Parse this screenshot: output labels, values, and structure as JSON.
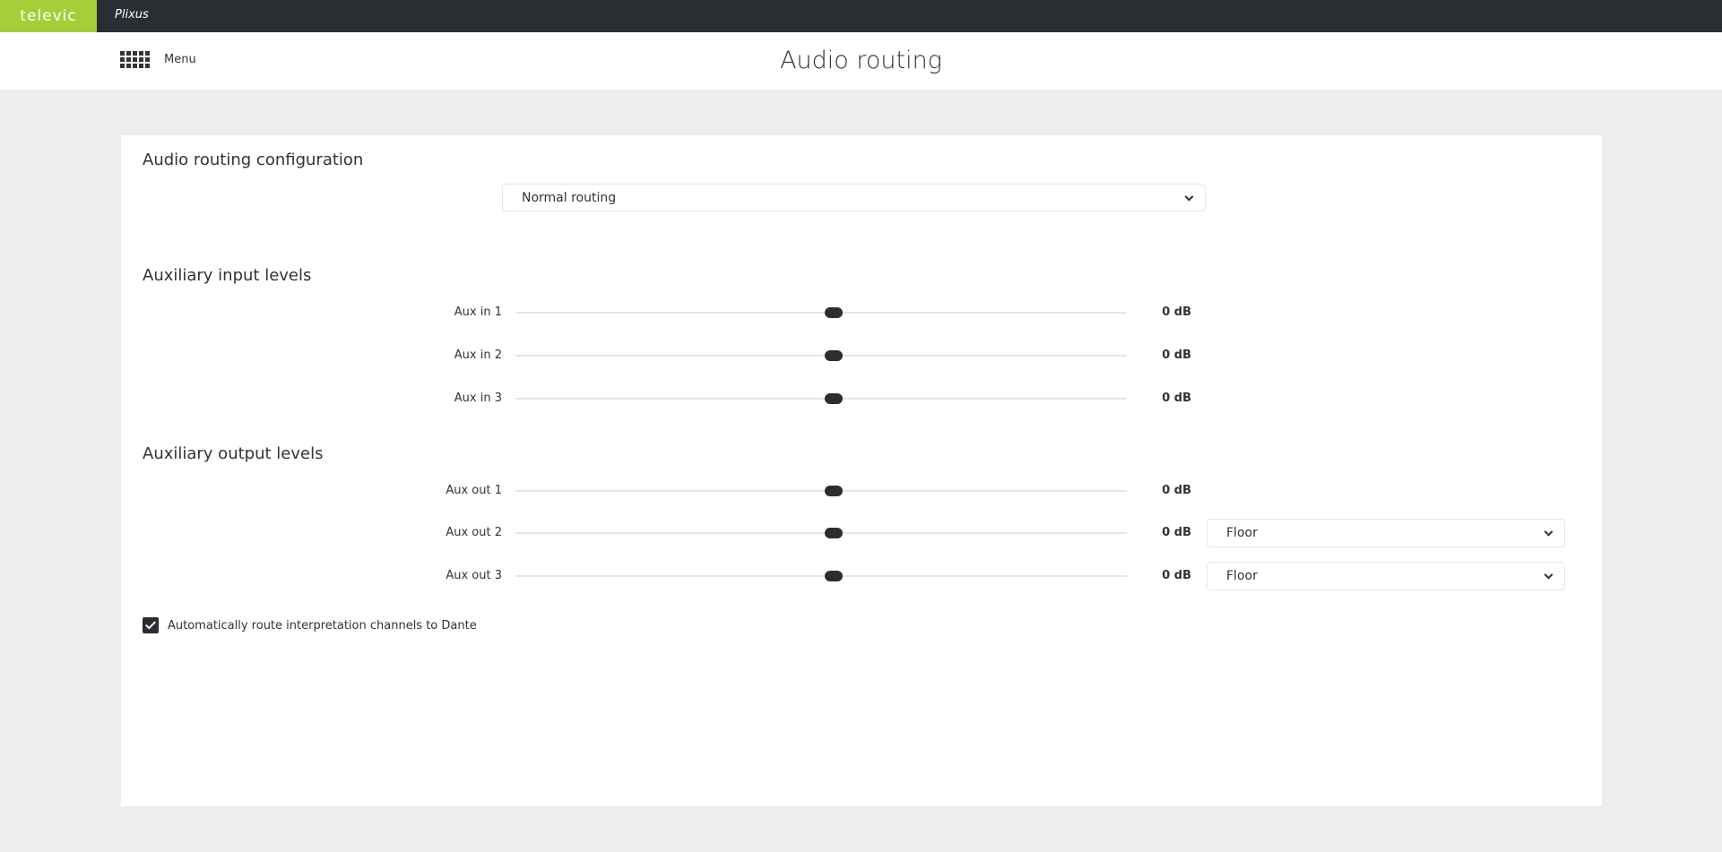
{
  "topbar": {
    "logo": "televic",
    "app_name": "Plixus",
    "brand_color": "#a6ce39"
  },
  "header": {
    "menu_label": "Menu",
    "title": "Audio routing"
  },
  "config": {
    "heading": "Audio routing configuration",
    "selected": "Normal routing"
  },
  "inputs": {
    "heading": "Auxiliary input levels",
    "rows": [
      {
        "label": "Aux in 1",
        "value": "0 dB",
        "level": 0.52
      },
      {
        "label": "Aux in 2",
        "value": "0 dB",
        "level": 0.52
      },
      {
        "label": "Aux in 3",
        "value": "0 dB",
        "level": 0.52
      }
    ]
  },
  "outputs": {
    "heading": "Auxiliary output levels",
    "rows": [
      {
        "label": "Aux out 1",
        "value": "0 dB",
        "level": 0.52
      },
      {
        "label": "Aux out 2",
        "value": "0 dB",
        "level": 0.52,
        "source": "Floor"
      },
      {
        "label": "Aux out 3",
        "value": "0 dB",
        "level": 0.52,
        "source": "Floor"
      }
    ]
  },
  "dante": {
    "label": "Automatically route interpretation channels to Dante",
    "checked": true
  }
}
